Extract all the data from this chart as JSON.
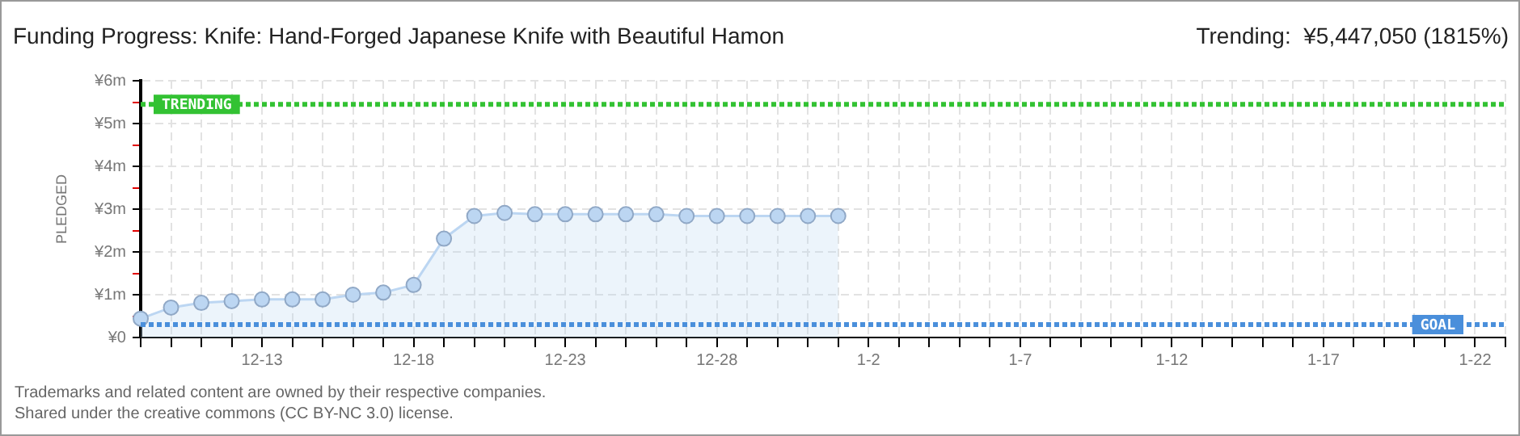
{
  "chart_data": {
    "type": "area",
    "title": "Funding Progress: Knife: Hand-Forged Japanese Knife with Beautiful Hamon",
    "subtitle": "Trending:  ¥5,447,050 (1815%)",
    "ylabel": "PLEDGED",
    "categories": [
      null,
      null,
      null,
      null,
      "12-13",
      null,
      null,
      null,
      null,
      "12-18",
      null,
      null,
      null,
      null,
      "12-23",
      null,
      null,
      null,
      null,
      "12-28",
      null,
      null,
      null,
      null,
      "1-2",
      null,
      null,
      null,
      null,
      "1-7",
      null,
      null,
      null,
      null,
      "1-12",
      null,
      null,
      null,
      null,
      "1-17",
      null,
      null,
      null,
      null,
      "1-22",
      null
    ],
    "series": [
      {
        "color": "#bcd6f2",
        "values": [
          440000,
          700000,
          810000,
          850000,
          890000,
          890000,
          890000,
          1000000,
          1050000,
          1230000,
          2310000,
          2840000,
          2910000,
          2880000,
          2880000,
          2880000,
          2880000,
          2880000,
          2840000,
          2840000,
          2840000,
          2840000,
          2840000,
          2840000,
          null,
          null,
          null,
          null,
          null,
          null,
          null,
          null,
          null,
          null,
          null,
          null,
          null,
          null,
          null,
          null,
          null,
          null,
          null,
          null,
          null,
          null
        ]
      }
    ],
    "marker": "circle",
    "grid": true,
    "ylim": [
      0,
      6000000
    ],
    "yticks": [
      {
        "value": 0,
        "label": "¥0"
      },
      {
        "value": 500000,
        "label": null
      },
      {
        "value": 1000000,
        "label": "¥1m"
      },
      {
        "value": 1500000,
        "label": null
      },
      {
        "value": 2000000,
        "label": "¥2m"
      },
      {
        "value": 2500000,
        "label": null
      },
      {
        "value": 3000000,
        "label": "¥3m"
      },
      {
        "value": 3500000,
        "label": null
      },
      {
        "value": 4000000,
        "label": "¥4m"
      },
      {
        "value": 4500000,
        "label": null
      },
      {
        "value": 5000000,
        "label": "¥5m"
      },
      {
        "value": 5500000,
        "label": null
      },
      {
        "value": 6000000,
        "label": "¥6m"
      }
    ],
    "ref_lines": [
      {
        "axis": "y",
        "value": 5447050,
        "label": "TRENDING",
        "color": "#33c233",
        "line_style": "dotted"
      },
      {
        "axis": "y",
        "value": 300000,
        "label": "GOAL",
        "color": "#4a8fdb",
        "line_style": "dotted"
      }
    ],
    "annotations": [
      "Trademarks and related content are owned by their respective companies.",
      "Shared under the creative commons (CC BY-NC 3.0) license."
    ]
  }
}
